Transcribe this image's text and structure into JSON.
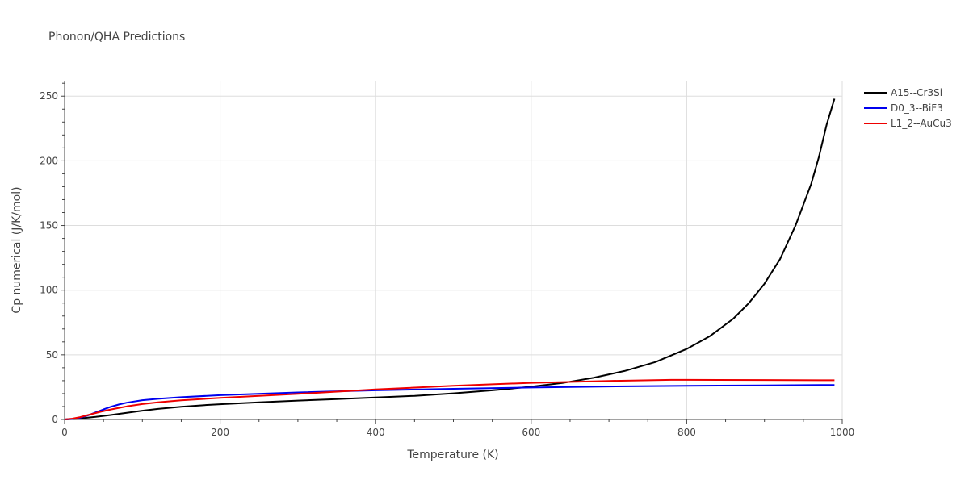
{
  "chart_data": {
    "type": "line",
    "title": "Phonon/QHA Predictions",
    "xlabel": "Temperature (K)",
    "ylabel": "Cp numerical (J/K/mol)",
    "xlim": [
      0,
      1000
    ],
    "ylim": [
      0,
      262
    ],
    "xticks": [
      0,
      200,
      400,
      600,
      800,
      1000
    ],
    "yticks": [
      0,
      50,
      100,
      150,
      200,
      250
    ],
    "grid": true,
    "legend_position": "right",
    "series": [
      {
        "name": "A15--Cr3Si",
        "color": "#000000",
        "x": [
          0,
          10,
          20,
          40,
          60,
          80,
          100,
          120,
          150,
          180,
          200,
          250,
          300,
          350,
          400,
          450,
          500,
          550,
          600,
          640,
          680,
          720,
          760,
          800,
          830,
          860,
          880,
          900,
          920,
          940,
          960,
          970,
          980,
          990
        ],
        "y": [
          0,
          0.3,
          0.8,
          2,
          3.5,
          5.2,
          6.8,
          8.2,
          9.8,
          11.1,
          11.8,
          13.3,
          14.6,
          15.8,
          17.0,
          18.3,
          20.2,
          22.5,
          25.3,
          28.2,
          32.2,
          37.5,
          44.5,
          54.5,
          64.5,
          78,
          90,
          105,
          124,
          150,
          182,
          203,
          228,
          248
        ]
      },
      {
        "name": "D0_3--BiF3",
        "color": "#0000ee",
        "x": [
          0,
          10,
          20,
          30,
          40,
          50,
          60,
          70,
          80,
          100,
          120,
          150,
          200,
          300,
          400,
          500,
          600,
          700,
          800,
          900,
          990
        ],
        "y": [
          0,
          0.4,
          1.4,
          3.2,
          5.5,
          7.8,
          9.9,
          11.6,
          13.0,
          14.9,
          16.0,
          17.2,
          18.8,
          20.9,
          22.5,
          23.7,
          24.7,
          25.5,
          26.0,
          26.4,
          26.7
        ]
      },
      {
        "name": "L1_2--AuCu3",
        "color": "#ee0000",
        "x": [
          0,
          10,
          20,
          30,
          40,
          50,
          60,
          70,
          80,
          100,
          120,
          150,
          200,
          300,
          400,
          500,
          550,
          600,
          700,
          780,
          800,
          900,
          990
        ],
        "y": [
          0,
          0.6,
          1.8,
          3.4,
          5.0,
          6.5,
          7.8,
          9.0,
          10.1,
          11.9,
          13.3,
          14.8,
          16.7,
          19.8,
          23.2,
          26.0,
          27.2,
          28.3,
          29.8,
          30.6,
          30.6,
          30.5,
          30.3
        ]
      }
    ]
  }
}
